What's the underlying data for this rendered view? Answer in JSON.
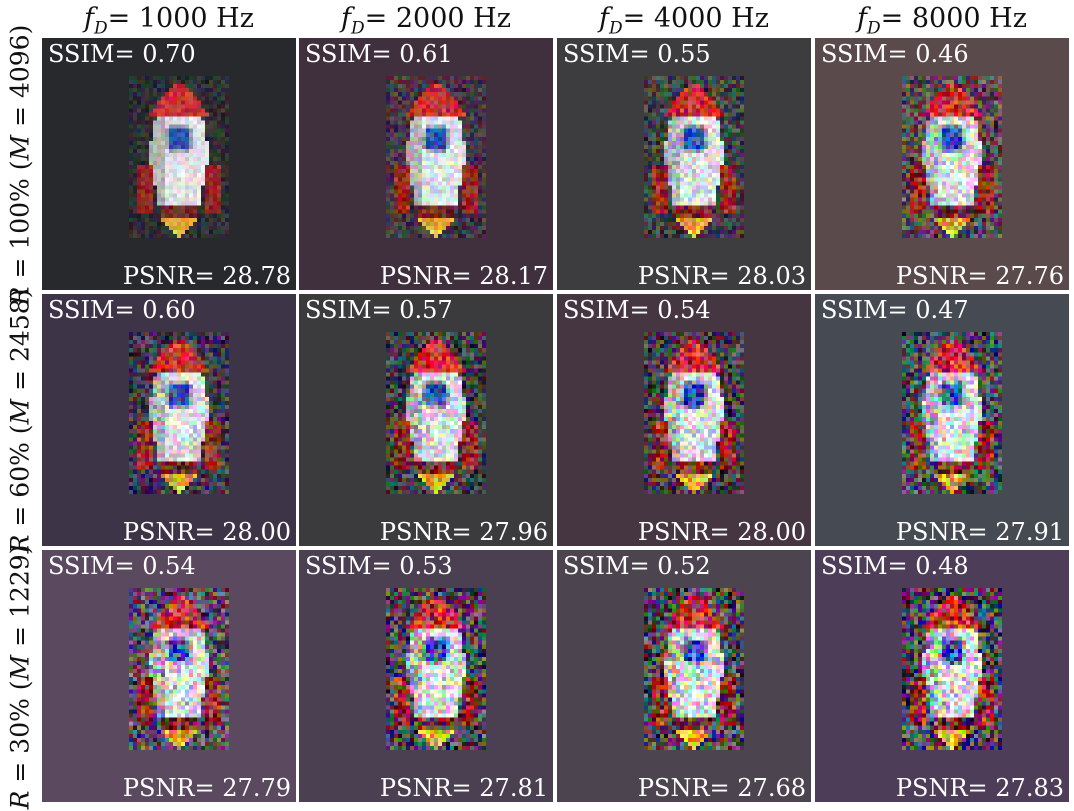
{
  "column_headers": [
    {
      "label": "f",
      "sub": "D",
      "value": "= 1000 Hz"
    },
    {
      "label": "f",
      "sub": "D",
      "value": "= 2000 Hz"
    },
    {
      "label": "f",
      "sub": "D",
      "value": "= 4000 Hz"
    },
    {
      "label": "f",
      "sub": "D",
      "value": "= 8000 Hz"
    }
  ],
  "row_labels": [
    {
      "var": "R",
      "text1": " = 100% (",
      "var2": "M",
      "text2": " = 4096)"
    },
    {
      "var": "R",
      "text1": " = 60% (",
      "var2": "M",
      "text2": " = 2458)"
    },
    {
      "var": "R",
      "text1": " = 30% (",
      "var2": "M",
      "text2": " = 1229)"
    }
  ],
  "panels": [
    [
      {
        "ssim": "SSIM= 0.70",
        "psnr": "PSNR= 28.78",
        "bg": "#28292c",
        "noise": 0.15
      },
      {
        "ssim": "SSIM= 0.61",
        "psnr": "PSNR= 28.17",
        "bg": "#40303d",
        "noise": 0.22
      },
      {
        "ssim": "SSIM= 0.55",
        "psnr": "PSNR= 28.03",
        "bg": "#3d3d40",
        "noise": 0.28
      },
      {
        "ssim": "SSIM= 0.46",
        "psnr": "PSNR= 27.76",
        "bg": "#5a4a4b",
        "noise": 0.36
      }
    ],
    [
      {
        "ssim": "SSIM= 0.60",
        "psnr": "PSNR= 28.00",
        "bg": "#3e3447",
        "noise": 0.32
      },
      {
        "ssim": "SSIM= 0.57",
        "psnr": "PSNR= 27.96",
        "bg": "#3b3a3d",
        "noise": 0.34
      },
      {
        "ssim": "SSIM= 0.54",
        "psnr": "PSNR= 28.00",
        "bg": "#463641",
        "noise": 0.38
      },
      {
        "ssim": "SSIM= 0.47",
        "psnr": "PSNR= 27.91",
        "bg": "#464a52",
        "noise": 0.44
      }
    ],
    [
      {
        "ssim": "SSIM= 0.54",
        "psnr": "PSNR= 27.79",
        "bg": "#5a495f",
        "noise": 0.45
      },
      {
        "ssim": "SSIM= 0.53",
        "psnr": "PSNR= 27.81",
        "bg": "#4a4052",
        "noise": 0.46
      },
      {
        "ssim": "SSIM= 0.52",
        "psnr": "PSNR= 27.68",
        "bg": "#4c4550",
        "noise": 0.48
      },
      {
        "ssim": "SSIM= 0.48",
        "psnr": "PSNR= 27.83",
        "bg": "#4e3d58",
        "noise": 0.52
      }
    ]
  ]
}
